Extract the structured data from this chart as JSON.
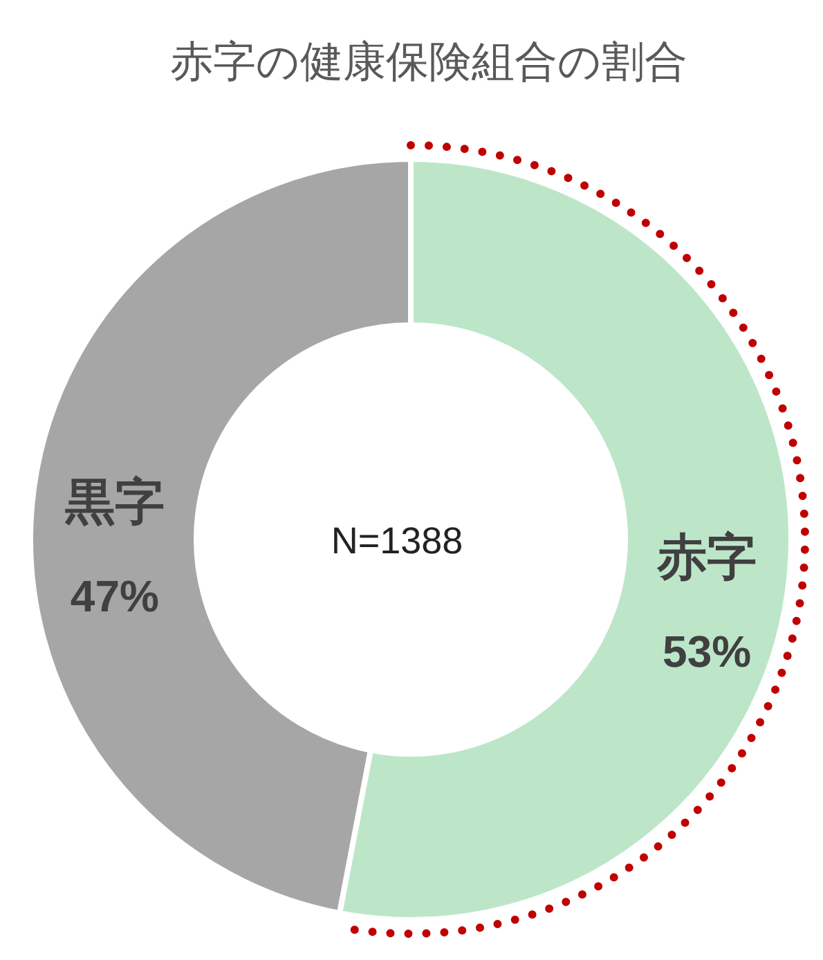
{
  "chart_data": {
    "type": "donut",
    "title": "赤字の健康保険組合の割合",
    "categories": [
      "赤字",
      "黒字"
    ],
    "values": [
      53,
      47
    ],
    "colors": [
      "#bde6c9",
      "#a6a6a6"
    ],
    "value_labels": [
      "53%",
      "47%"
    ],
    "annotations": [
      "N=1388"
    ]
  }
}
